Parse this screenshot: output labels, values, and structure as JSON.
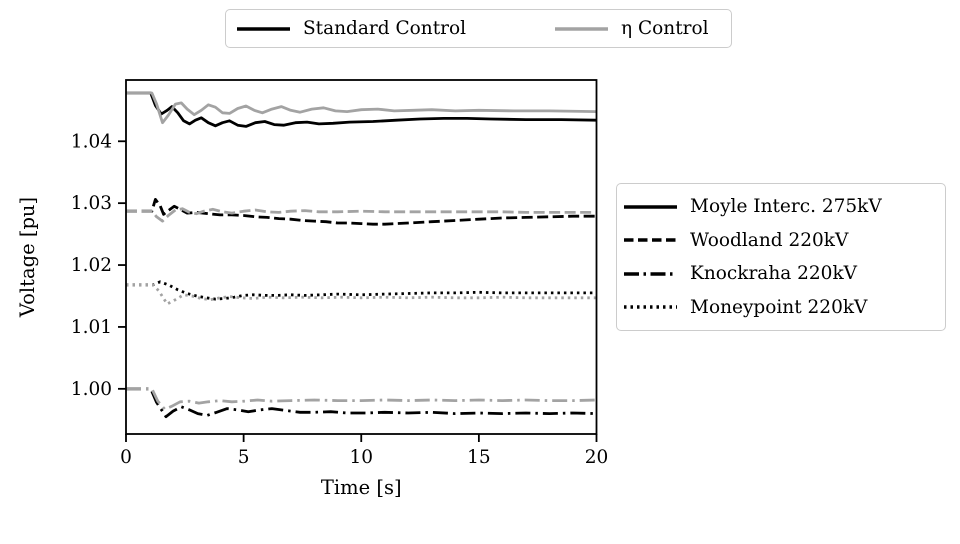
{
  "figure": {
    "background": "#ffffff",
    "colors": {
      "standard": "#000000",
      "eta": "#a3a3a3",
      "axis": "#000000",
      "legend_border": "#cccccc"
    }
  },
  "control_legend": {
    "entries": [
      {
        "id": "standard-control",
        "label": "Standard Control",
        "color": "#000000",
        "dash": "solid"
      },
      {
        "id": "eta-control",
        "label": "η Control",
        "color": "#a3a3a3",
        "dash": "solid"
      }
    ]
  },
  "bus_legend": {
    "entries": [
      {
        "id": "moyle",
        "label": "Moyle Interc. 275kV",
        "color": "#000000",
        "dash": "solid"
      },
      {
        "id": "woodland",
        "label": "Woodland 220kV",
        "color": "#000000",
        "dash": "dashed"
      },
      {
        "id": "knockraha",
        "label": "Knockraha 220kV",
        "color": "#000000",
        "dash": "dashdot"
      },
      {
        "id": "moneypoint",
        "label": "Moneypoint 220kV",
        "color": "#000000",
        "dash": "dotted"
      }
    ]
  },
  "chart_data": {
    "type": "line",
    "title": "",
    "xlabel": "Time [s]",
    "ylabel": "Voltage [pu]",
    "xlim": [
      0,
      20
    ],
    "ylim": [
      0.9927,
      1.0499
    ],
    "xticks": [
      0,
      5,
      10,
      15,
      20
    ],
    "xtick_labels": [
      "0",
      "5",
      "10",
      "15",
      "20"
    ],
    "yticks": [
      1.0,
      1.01,
      1.02,
      1.03,
      1.04
    ],
    "ytick_labels": [
      "1.00",
      "1.01",
      "1.02",
      "1.03",
      "1.04"
    ],
    "grid": false,
    "legend_positions": {
      "control": "above axes, centered",
      "bus": "right of axes, centered"
    },
    "series": [
      {
        "id": "moyle-standard",
        "bus": "Moyle Interc. 275kV",
        "control": "Standard Control",
        "color": "#000000",
        "dash": "solid",
        "points": [
          [
            0,
            1.0478
          ],
          [
            1.05,
            1.0478
          ],
          [
            1.25,
            1.0458
          ],
          [
            1.5,
            1.0444
          ],
          [
            1.75,
            1.045
          ],
          [
            1.95,
            1.0456
          ],
          [
            2.2,
            1.0446
          ],
          [
            2.45,
            1.0433
          ],
          [
            2.7,
            1.0428
          ],
          [
            2.95,
            1.0434
          ],
          [
            3.2,
            1.0438
          ],
          [
            3.5,
            1.043
          ],
          [
            3.8,
            1.0425
          ],
          [
            4.1,
            1.043
          ],
          [
            4.4,
            1.0433
          ],
          [
            4.75,
            1.0426
          ],
          [
            5.1,
            1.0424
          ],
          [
            5.5,
            1.043
          ],
          [
            5.9,
            1.0432
          ],
          [
            6.3,
            1.0427
          ],
          [
            6.7,
            1.0426
          ],
          [
            7.2,
            1.043
          ],
          [
            7.7,
            1.0431
          ],
          [
            8.2,
            1.0428
          ],
          [
            8.8,
            1.0429
          ],
          [
            9.5,
            1.0431
          ],
          [
            10.5,
            1.0432
          ],
          [
            11.5,
            1.0434
          ],
          [
            12.5,
            1.0436
          ],
          [
            13.5,
            1.0437
          ],
          [
            14.5,
            1.0437
          ],
          [
            15.5,
            1.0436
          ],
          [
            17,
            1.0435
          ],
          [
            18.5,
            1.0435
          ],
          [
            20,
            1.0434
          ]
        ]
      },
      {
        "id": "woodland-standard",
        "bus": "Woodland 220kV",
        "control": "Standard Control",
        "color": "#000000",
        "dash": "dashed",
        "points": [
          [
            0,
            1.0287
          ],
          [
            1.1,
            1.0287
          ],
          [
            1.25,
            1.0306
          ],
          [
            1.45,
            1.0296
          ],
          [
            1.6,
            1.0282
          ],
          [
            1.8,
            1.0288
          ],
          [
            2.05,
            1.0295
          ],
          [
            2.3,
            1.029
          ],
          [
            2.6,
            1.0284
          ],
          [
            3,
            1.0285
          ],
          [
            3.5,
            1.0283
          ],
          [
            4,
            1.0281
          ],
          [
            4.5,
            1.0281
          ],
          [
            5,
            1.028
          ],
          [
            5.5,
            1.0278
          ],
          [
            6,
            1.0277
          ],
          [
            6.5,
            1.0275
          ],
          [
            7,
            1.0274
          ],
          [
            7.5,
            1.0272
          ],
          [
            8,
            1.0271
          ],
          [
            8.5,
            1.027
          ],
          [
            9,
            1.0268
          ],
          [
            9.5,
            1.0268
          ],
          [
            10,
            1.0267
          ],
          [
            10.5,
            1.0266
          ],
          [
            11,
            1.0266
          ],
          [
            11.5,
            1.0267
          ],
          [
            12,
            1.0268
          ],
          [
            13,
            1.027
          ],
          [
            14,
            1.0272
          ],
          [
            15,
            1.0274
          ],
          [
            16,
            1.0276
          ],
          [
            17,
            1.0277
          ],
          [
            18,
            1.0278
          ],
          [
            19,
            1.0279
          ],
          [
            20,
            1.0279
          ]
        ]
      },
      {
        "id": "knockraha-standard",
        "bus": "Knockraha 220kV",
        "control": "Standard Control",
        "color": "#000000",
        "dash": "dashdot",
        "points": [
          [
            0,
            1.0
          ],
          [
            1.05,
            1.0
          ],
          [
            1.3,
            0.9978
          ],
          [
            1.7,
            0.9955
          ],
          [
            2,
            0.9964
          ],
          [
            2.35,
            0.9971
          ],
          [
            2.7,
            0.9966
          ],
          [
            3.05,
            0.996
          ],
          [
            3.45,
            0.9957
          ],
          [
            3.85,
            0.9962
          ],
          [
            4.3,
            0.9968
          ],
          [
            4.75,
            0.9966
          ],
          [
            5.2,
            0.9963
          ],
          [
            5.7,
            0.9966
          ],
          [
            6.2,
            0.9968
          ],
          [
            6.8,
            0.9965
          ],
          [
            7.4,
            0.9962
          ],
          [
            8,
            0.9962
          ],
          [
            8.7,
            0.9963
          ],
          [
            9.4,
            0.9961
          ],
          [
            10.2,
            0.9961
          ],
          [
            11,
            0.9962
          ],
          [
            12,
            0.9961
          ],
          [
            13,
            0.9962
          ],
          [
            14,
            0.996
          ],
          [
            15,
            0.9961
          ],
          [
            16,
            0.996
          ],
          [
            17,
            0.9961
          ],
          [
            18,
            0.996
          ],
          [
            19,
            0.9961
          ],
          [
            20,
            0.996
          ]
        ]
      },
      {
        "id": "moneypoint-standard",
        "bus": "Moneypoint 220kV",
        "control": "Standard Control",
        "color": "#000000",
        "dash": "dotted",
        "points": [
          [
            0,
            1.0168
          ],
          [
            1.15,
            1.0168
          ],
          [
            1.45,
            1.0173
          ],
          [
            1.8,
            1.0168
          ],
          [
            2.2,
            1.016
          ],
          [
            2.6,
            1.0154
          ],
          [
            3,
            1.015
          ],
          [
            3.4,
            1.0147
          ],
          [
            3.8,
            1.0145
          ],
          [
            4.2,
            1.0146
          ],
          [
            4.6,
            1.0148
          ],
          [
            5,
            1.0151
          ],
          [
            5.4,
            1.0152
          ],
          [
            5.9,
            1.0151
          ],
          [
            6.4,
            1.0151
          ],
          [
            7,
            1.0152
          ],
          [
            7.6,
            1.0151
          ],
          [
            8.3,
            1.0152
          ],
          [
            9,
            1.0153
          ],
          [
            10,
            1.0152
          ],
          [
            11,
            1.0153
          ],
          [
            12,
            1.0154
          ],
          [
            13,
            1.0155
          ],
          [
            14,
            1.0155
          ],
          [
            15,
            1.0156
          ],
          [
            16,
            1.0155
          ],
          [
            17,
            1.0155
          ],
          [
            18,
            1.0155
          ],
          [
            19,
            1.0155
          ],
          [
            20,
            1.0155
          ]
        ]
      },
      {
        "id": "moyle-eta",
        "bus": "Moyle Interc. 275kV",
        "control": "η Control",
        "color": "#a3a3a3",
        "dash": "solid",
        "points": [
          [
            0,
            1.0478
          ],
          [
            1.1,
            1.0478
          ],
          [
            1.3,
            1.046
          ],
          [
            1.55,
            1.043
          ],
          [
            1.8,
            1.0442
          ],
          [
            2.1,
            1.046
          ],
          [
            2.35,
            1.0462
          ],
          [
            2.6,
            1.0452
          ],
          [
            2.9,
            1.0443
          ],
          [
            3.2,
            1.045
          ],
          [
            3.5,
            1.0459
          ],
          [
            3.8,
            1.0455
          ],
          [
            4.1,
            1.0446
          ],
          [
            4.4,
            1.0445
          ],
          [
            4.75,
            1.0453
          ],
          [
            5.1,
            1.0457
          ],
          [
            5.45,
            1.045
          ],
          [
            5.8,
            1.0446
          ],
          [
            6.2,
            1.0452
          ],
          [
            6.6,
            1.0456
          ],
          [
            7,
            1.045
          ],
          [
            7.4,
            1.0447
          ],
          [
            7.9,
            1.0452
          ],
          [
            8.4,
            1.0454
          ],
          [
            8.9,
            1.0449
          ],
          [
            9.4,
            1.0448
          ],
          [
            10,
            1.0451
          ],
          [
            10.7,
            1.0452
          ],
          [
            11.4,
            1.0449
          ],
          [
            12.2,
            1.045
          ],
          [
            13,
            1.0451
          ],
          [
            14,
            1.0449
          ],
          [
            15,
            1.045
          ],
          [
            16.5,
            1.0449
          ],
          [
            18,
            1.0449
          ],
          [
            20,
            1.0448
          ]
        ]
      },
      {
        "id": "woodland-eta",
        "bus": "Woodland 220kV",
        "control": "η Control",
        "color": "#a3a3a3",
        "dash": "dashed",
        "points": [
          [
            0,
            1.0287
          ],
          [
            1.1,
            1.0287
          ],
          [
            1.3,
            1.0278
          ],
          [
            1.55,
            1.0271
          ],
          [
            1.8,
            1.028
          ],
          [
            2.1,
            1.0289
          ],
          [
            2.4,
            1.0291
          ],
          [
            2.7,
            1.0285
          ],
          [
            3,
            1.0283
          ],
          [
            3.3,
            1.0287
          ],
          [
            3.7,
            1.029
          ],
          [
            4.1,
            1.0286
          ],
          [
            4.5,
            1.0284
          ],
          [
            5,
            1.0287
          ],
          [
            5.5,
            1.0289
          ],
          [
            6,
            1.0286
          ],
          [
            6.5,
            1.0285
          ],
          [
            7,
            1.0287
          ],
          [
            7.6,
            1.0288
          ],
          [
            8.2,
            1.0286
          ],
          [
            9,
            1.0286
          ],
          [
            10,
            1.0287
          ],
          [
            11,
            1.0286
          ],
          [
            12,
            1.0286
          ],
          [
            13,
            1.0286
          ],
          [
            14,
            1.0286
          ],
          [
            15,
            1.0286
          ],
          [
            16,
            1.0286
          ],
          [
            17,
            1.0285
          ],
          [
            18,
            1.0285
          ],
          [
            19,
            1.0285
          ],
          [
            20,
            1.0285
          ]
        ]
      },
      {
        "id": "knockraha-eta",
        "bus": "Knockraha 220kV",
        "control": "η Control",
        "color": "#a3a3a3",
        "dash": "dashdot",
        "points": [
          [
            0,
            1.0
          ],
          [
            1.1,
            1.0
          ],
          [
            1.35,
            0.998
          ],
          [
            1.65,
            0.9967
          ],
          [
            1.95,
            0.9972
          ],
          [
            2.3,
            0.9979
          ],
          [
            2.7,
            0.998
          ],
          [
            3.1,
            0.9977
          ],
          [
            3.5,
            0.9979
          ],
          [
            4,
            0.9981
          ],
          [
            4.5,
            0.9979
          ],
          [
            5,
            0.998
          ],
          [
            5.6,
            0.9982
          ],
          [
            6.2,
            0.998
          ],
          [
            7,
            0.9981
          ],
          [
            8,
            0.9982
          ],
          [
            9,
            0.9981
          ],
          [
            10,
            0.9981
          ],
          [
            11,
            0.9982
          ],
          [
            12,
            0.9981
          ],
          [
            13,
            0.9982
          ],
          [
            14,
            0.9981
          ],
          [
            15,
            0.9982
          ],
          [
            16,
            0.9981
          ],
          [
            17,
            0.9982
          ],
          [
            18,
            0.9981
          ],
          [
            19,
            0.9981
          ],
          [
            20,
            0.9982
          ]
        ]
      },
      {
        "id": "moneypoint-eta",
        "bus": "Moneypoint 220kV",
        "control": "η Control",
        "color": "#a3a3a3",
        "dash": "dotted",
        "points": [
          [
            0,
            1.0168
          ],
          [
            1.15,
            1.0168
          ],
          [
            1.4,
            1.0158
          ],
          [
            1.75,
            1.0137
          ],
          [
            2.1,
            1.0144
          ],
          [
            2.45,
            1.0152
          ],
          [
            2.8,
            1.015
          ],
          [
            3.2,
            1.0146
          ],
          [
            3.6,
            1.0144
          ],
          [
            4,
            1.0147
          ],
          [
            4.4,
            1.0149
          ],
          [
            4.9,
            1.0147
          ],
          [
            5.4,
            1.0146
          ],
          [
            6,
            1.0148
          ],
          [
            6.7,
            1.0147
          ],
          [
            7.5,
            1.0148
          ],
          [
            8.3,
            1.0147
          ],
          [
            9.2,
            1.0148
          ],
          [
            10,
            1.0147
          ],
          [
            11,
            1.0148
          ],
          [
            12,
            1.0147
          ],
          [
            13,
            1.0148
          ],
          [
            14,
            1.0147
          ],
          [
            15,
            1.0147
          ],
          [
            16,
            1.0148
          ],
          [
            17,
            1.0147
          ],
          [
            18,
            1.0147
          ],
          [
            19,
            1.0147
          ],
          [
            20,
            1.0147
          ]
        ]
      }
    ]
  }
}
